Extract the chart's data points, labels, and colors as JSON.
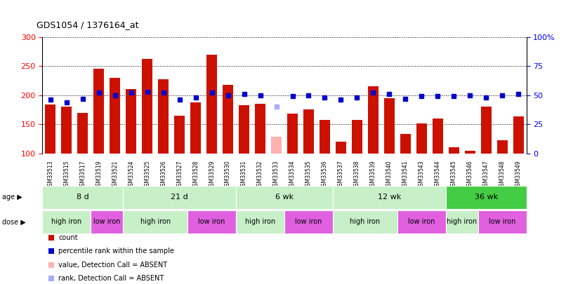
{
  "title": "GDS1054 / 1376164_at",
  "samples": [
    "GSM33513",
    "GSM33515",
    "GSM33517",
    "GSM33519",
    "GSM33521",
    "GSM33524",
    "GSM33525",
    "GSM33526",
    "GSM33527",
    "GSM33528",
    "GSM33529",
    "GSM33530",
    "GSM33531",
    "GSM33532",
    "GSM33533",
    "GSM33534",
    "GSM33535",
    "GSM33536",
    "GSM33537",
    "GSM33538",
    "GSM33539",
    "GSM33540",
    "GSM33541",
    "GSM33543",
    "GSM33544",
    "GSM33545",
    "GSM33546",
    "GSM33547",
    "GSM33548",
    "GSM33549"
  ],
  "bar_values": [
    184,
    180,
    170,
    245,
    230,
    210,
    262,
    227,
    165,
    188,
    270,
    218,
    183,
    185,
    128,
    168,
    175,
    158,
    120,
    157,
    215,
    195,
    133,
    152,
    160,
    110,
    104,
    180,
    122,
    163
  ],
  "bar_absent": [
    false,
    false,
    false,
    false,
    false,
    false,
    false,
    false,
    false,
    false,
    false,
    false,
    false,
    false,
    true,
    false,
    false,
    false,
    false,
    false,
    false,
    false,
    false,
    false,
    false,
    false,
    false,
    false,
    false,
    false
  ],
  "blue_values": [
    46,
    44,
    47,
    52,
    50,
    52,
    53,
    52,
    46,
    48,
    52,
    50,
    51,
    50,
    40,
    49,
    50,
    48,
    46,
    48,
    52,
    51,
    47,
    49,
    49,
    49,
    50,
    48,
    50,
    51
  ],
  "blue_absent": [
    false,
    false,
    false,
    false,
    false,
    false,
    false,
    false,
    false,
    false,
    false,
    false,
    false,
    false,
    true,
    false,
    false,
    false,
    false,
    false,
    false,
    false,
    false,
    false,
    false,
    false,
    false,
    false,
    false,
    false
  ],
  "age_groups": [
    {
      "label": "8 d",
      "start": 0,
      "end": 5
    },
    {
      "label": "21 d",
      "start": 5,
      "end": 12
    },
    {
      "label": "6 wk",
      "start": 12,
      "end": 18
    },
    {
      "label": "12 wk",
      "start": 18,
      "end": 25
    },
    {
      "label": "36 wk",
      "start": 25,
      "end": 30
    }
  ],
  "dose_groups": [
    {
      "label": "high iron",
      "start": 0,
      "end": 3
    },
    {
      "label": "low iron",
      "start": 3,
      "end": 5
    },
    {
      "label": "high iron",
      "start": 5,
      "end": 9
    },
    {
      "label": "low iron",
      "start": 9,
      "end": 12
    },
    {
      "label": "high iron",
      "start": 12,
      "end": 15
    },
    {
      "label": "low iron",
      "start": 15,
      "end": 18
    },
    {
      "label": "high iron",
      "start": 18,
      "end": 22
    },
    {
      "label": "low iron",
      "start": 22,
      "end": 25
    },
    {
      "label": "high iron",
      "start": 25,
      "end": 27
    },
    {
      "label": "low iron",
      "start": 27,
      "end": 30
    }
  ],
  "ylim_left": [
    100,
    300
  ],
  "ylim_right": [
    0,
    100
  ],
  "yticks_left": [
    100,
    150,
    200,
    250,
    300
  ],
  "yticks_right": [
    0,
    25,
    50,
    75,
    100
  ],
  "bar_color": "#cc1100",
  "bar_absent_color": "#ffb0b0",
  "blue_color": "#0000cc",
  "blue_absent_color": "#aaaaff",
  "age_colors": [
    "#c8f0c8",
    "#c8f0c8",
    "#c8f0c8",
    "#c8f0c8",
    "#44cc44"
  ],
  "high_iron_color": "#c8f0c8",
  "low_iron_color": "#e060e0",
  "legend_items": [
    {
      "label": "count",
      "color": "#cc1100"
    },
    {
      "label": "percentile rank within the sample",
      "color": "#0000cc"
    },
    {
      "label": "value, Detection Call = ABSENT",
      "color": "#ffb0b0"
    },
    {
      "label": "rank, Detection Call = ABSENT",
      "color": "#aaaaff"
    }
  ]
}
